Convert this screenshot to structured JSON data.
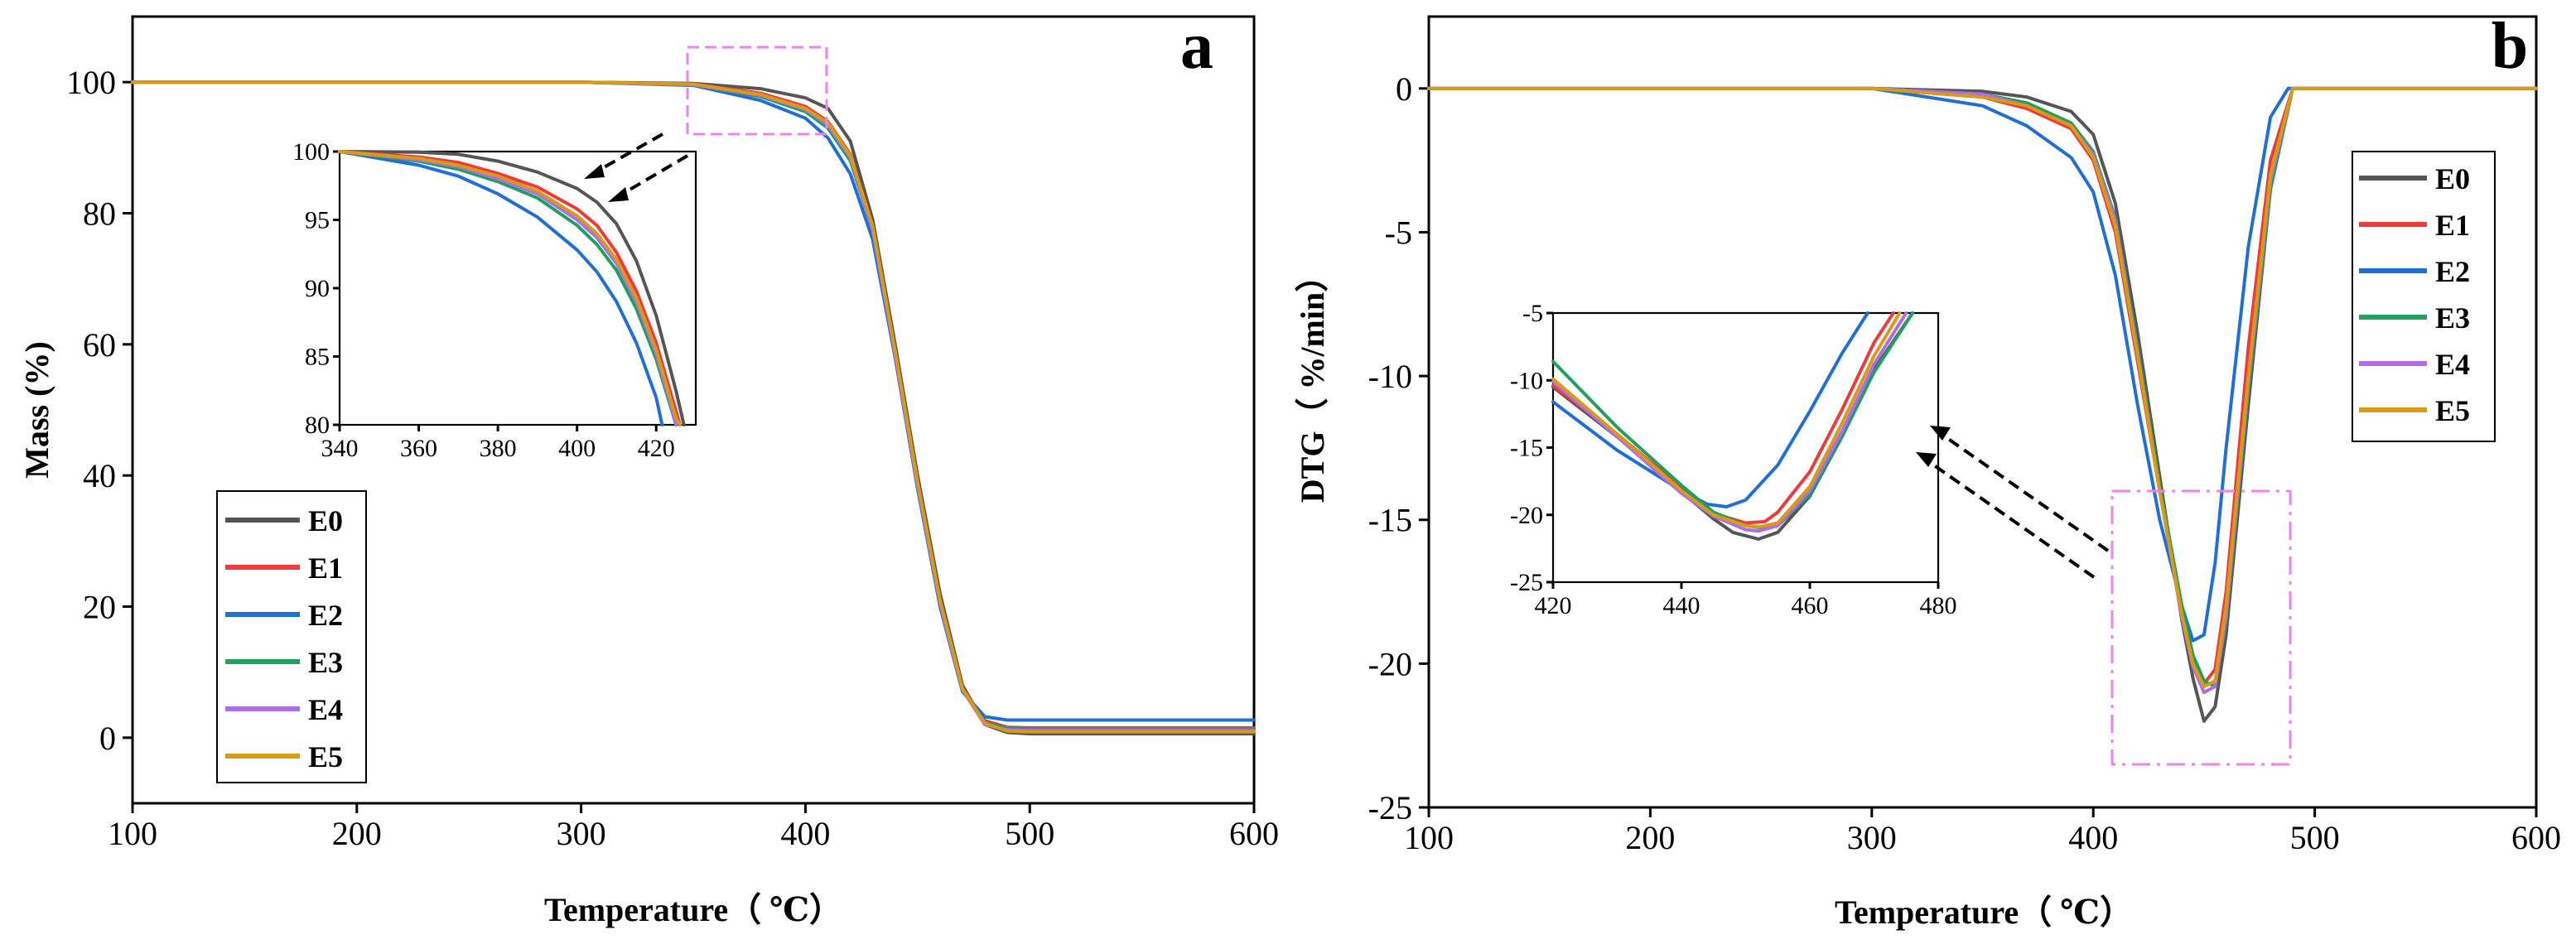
{
  "chart_data": [
    {
      "panel": "a",
      "type": "line",
      "xlabel": "Temperature（ ℃）",
      "ylabel": "Mass (%)",
      "xlim": [
        100,
        600
      ],
      "ylim": [
        -10,
        110
      ],
      "xticks": [
        100,
        200,
        300,
        400,
        500,
        600
      ],
      "yticks": [
        0,
        20,
        40,
        60,
        80,
        100
      ],
      "tick_labels_x": [
        "100",
        "200",
        "300",
        "400",
        "500",
        "600"
      ],
      "tick_labels_y": [
        "0",
        "20",
        "40",
        "60",
        "80",
        "100"
      ],
      "legend_position": "bottom-left",
      "series": [
        {
          "name": "E0",
          "color": "#555555",
          "x": [
            100,
            300,
            350,
            380,
            400,
            410,
            420,
            430,
            440,
            450,
            460,
            470,
            480,
            490,
            500,
            600
          ],
          "y": [
            100,
            100,
            99.8,
            99.0,
            97.6,
            96.0,
            91.0,
            79.0,
            60.0,
            40.0,
            22.0,
            8.0,
            2.0,
            0.8,
            0.6,
            0.6
          ]
        },
        {
          "name": "E1",
          "color": "#ee3a3a",
          "x": [
            100,
            300,
            350,
            380,
            400,
            410,
            420,
            430,
            440,
            450,
            460,
            470,
            480,
            490,
            500,
            600
          ],
          "y": [
            100,
            100,
            99.7,
            98.3,
            96.3,
            94.0,
            89.0,
            78.0,
            59.0,
            39.0,
            21.0,
            7.5,
            2.6,
            1.6,
            1.5,
            1.5
          ]
        },
        {
          "name": "E2",
          "color": "#1f6fd6",
          "x": [
            100,
            300,
            350,
            380,
            400,
            410,
            420,
            430,
            440,
            450,
            460,
            470,
            480,
            490,
            500,
            600
          ],
          "y": [
            100,
            100,
            99.5,
            97.2,
            94.5,
            91.5,
            86.0,
            76.0,
            58.0,
            38.0,
            20.0,
            7.0,
            3.2,
            2.7,
            2.7,
            2.7
          ]
        },
        {
          "name": "E3",
          "color": "#1fa060",
          "x": [
            100,
            300,
            350,
            380,
            400,
            410,
            420,
            430,
            440,
            450,
            460,
            470,
            480,
            490,
            500,
            600
          ],
          "y": [
            100,
            100,
            99.6,
            97.8,
            95.5,
            93.0,
            88.0,
            77.5,
            58.5,
            38.5,
            20.5,
            7.2,
            2.3,
            1.4,
            1.3,
            1.3
          ]
        },
        {
          "name": "E4",
          "color": "#b06cf0",
          "x": [
            100,
            300,
            350,
            380,
            400,
            410,
            420,
            430,
            440,
            450,
            460,
            470,
            480,
            490,
            500,
            600
          ],
          "y": [
            100,
            100,
            99.6,
            98.0,
            95.8,
            93.5,
            88.5,
            77.5,
            58.5,
            38.5,
            20.5,
            7.3,
            2.0,
            1.2,
            1.1,
            1.1
          ]
        },
        {
          "name": "E5",
          "color": "#d89b12",
          "x": [
            100,
            300,
            350,
            380,
            400,
            410,
            420,
            430,
            440,
            450,
            460,
            470,
            480,
            490,
            500,
            600
          ],
          "y": [
            100,
            100,
            99.7,
            98.1,
            96.0,
            93.8,
            88.8,
            78.0,
            59.0,
            39.0,
            21.0,
            7.5,
            2.2,
            1.0,
            0.9,
            0.9
          ]
        }
      ],
      "inset": {
        "xlim": [
          340,
          430
        ],
        "ylim": [
          80,
          100
        ],
        "xticks": [
          340,
          360,
          380,
          400,
          420
        ],
        "yticks": [
          80,
          85,
          90,
          95,
          100
        ],
        "tick_labels_x": [
          "340",
          "360",
          "380",
          "400",
          "420"
        ],
        "tick_labels_y": [
          "80",
          "85",
          "90",
          "95",
          "100"
        ],
        "series": [
          {
            "name": "E0",
            "x": [
              340,
              360,
              370,
              380,
              390,
              400,
              405,
              410,
              415,
              420,
              425,
              427
            ],
            "y": [
              100,
              99.95,
              99.8,
              99.3,
              98.5,
              97.3,
              96.3,
              94.7,
              92.0,
              88.0,
              82.5,
              80.0
            ]
          },
          {
            "name": "E1",
            "x": [
              340,
              360,
              370,
              380,
              390,
              400,
              405,
              410,
              415,
              420,
              425,
              426
            ],
            "y": [
              100,
              99.6,
              99.2,
              98.4,
              97.4,
              95.8,
              94.6,
              92.6,
              89.8,
              86.0,
              81.0,
              80.0
            ]
          },
          {
            "name": "E2",
            "x": [
              340,
              360,
              370,
              380,
              390,
              400,
              405,
              410,
              415,
              420,
              421.5
            ],
            "y": [
              100,
              99.0,
              98.2,
              96.9,
              95.2,
              92.8,
              91.2,
              89.0,
              86.0,
              82.0,
              80.0
            ]
          },
          {
            "name": "E3",
            "x": [
              340,
              360,
              370,
              380,
              390,
              400,
              405,
              410,
              415,
              420,
              424,
              425
            ],
            "y": [
              100,
              99.3,
              98.7,
              97.8,
              96.6,
              94.6,
              93.2,
              91.3,
              88.5,
              84.8,
              81.0,
              80.0
            ]
          },
          {
            "name": "E4",
            "x": [
              340,
              360,
              370,
              380,
              390,
              400,
              405,
              410,
              415,
              420,
              424,
              425
            ],
            "y": [
              100,
              99.4,
              98.9,
              98.0,
              96.9,
              95.0,
              93.7,
              91.8,
              89.0,
              85.2,
              81.2,
              80.0
            ]
          },
          {
            "name": "E5",
            "x": [
              340,
              360,
              370,
              380,
              390,
              400,
              405,
              410,
              415,
              420,
              425,
              426
            ],
            "y": [
              100,
              99.5,
              99.0,
              98.2,
              97.1,
              95.3,
              94.0,
              92.1,
              89.3,
              85.5,
              80.5,
              80.0
            ]
          }
        ]
      }
    },
    {
      "panel": "b",
      "type": "line",
      "xlabel": "Temperature（ ℃）",
      "ylabel": "DTG（ %/min）",
      "xlim": [
        100,
        600
      ],
      "ylim": [
        -25,
        2.5
      ],
      "xticks": [
        100,
        200,
        300,
        400,
        500,
        600
      ],
      "yticks": [
        -25,
        -20,
        -15,
        -10,
        -5,
        0
      ],
      "tick_labels_x": [
        "100",
        "200",
        "300",
        "400",
        "500",
        "600"
      ],
      "tick_labels_y": [
        "-25",
        "-20",
        "-15",
        "-10",
        "-5",
        "0"
      ],
      "legend_position": "right",
      "series": [
        {
          "name": "E0",
          "color": "#555555",
          "x": [
            100,
            300,
            350,
            370,
            390,
            400,
            410,
            420,
            430,
            440,
            445,
            450,
            455,
            460,
            470,
            480,
            490,
            600
          ],
          "y": [
            0,
            0,
            -0.1,
            -0.3,
            -0.8,
            -1.6,
            -4.0,
            -8.5,
            -13.5,
            -18.5,
            -20.5,
            -22.0,
            -21.5,
            -19.0,
            -11.0,
            -3.5,
            0,
            0
          ]
        },
        {
          "name": "E1",
          "color": "#ee3a3a",
          "x": [
            100,
            300,
            350,
            370,
            390,
            400,
            410,
            420,
            430,
            440,
            445,
            450,
            455,
            460,
            470,
            480,
            490,
            600
          ],
          "y": [
            0,
            0,
            -0.3,
            -0.7,
            -1.4,
            -2.5,
            -5.0,
            -9.5,
            -14.0,
            -18.0,
            -19.8,
            -20.7,
            -20.2,
            -17.5,
            -9.0,
            -2.5,
            0,
            0
          ]
        },
        {
          "name": "E2",
          "color": "#1f6fd6",
          "x": [
            100,
            300,
            350,
            370,
            390,
            400,
            410,
            420,
            430,
            440,
            445,
            450,
            455,
            460,
            470,
            480,
            488,
            600
          ],
          "y": [
            0,
            0,
            -0.6,
            -1.3,
            -2.4,
            -3.6,
            -6.5,
            -11.0,
            -15.0,
            -18.0,
            -19.2,
            -19.0,
            -16.5,
            -12.5,
            -5.5,
            -1.0,
            0,
            0
          ]
        },
        {
          "name": "E3",
          "color": "#1fa060",
          "x": [
            100,
            300,
            350,
            370,
            390,
            400,
            410,
            420,
            430,
            440,
            445,
            450,
            455,
            460,
            470,
            480,
            490,
            600
          ],
          "y": [
            0,
            0,
            -0.2,
            -0.5,
            -1.2,
            -2.2,
            -4.5,
            -9.0,
            -13.8,
            -18.0,
            -19.7,
            -20.6,
            -20.8,
            -18.5,
            -10.5,
            -3.5,
            0,
            0
          ]
        },
        {
          "name": "E4",
          "color": "#b06cf0",
          "x": [
            100,
            300,
            350,
            370,
            390,
            400,
            410,
            420,
            430,
            440,
            445,
            450,
            455,
            460,
            470,
            480,
            490,
            600
          ],
          "y": [
            0,
            0,
            -0.2,
            -0.6,
            -1.3,
            -2.3,
            -4.6,
            -9.2,
            -14.0,
            -18.4,
            -20.1,
            -21.0,
            -20.8,
            -18.3,
            -10.2,
            -3.2,
            0,
            0
          ]
        },
        {
          "name": "E5",
          "color": "#d89b12",
          "x": [
            100,
            300,
            350,
            370,
            390,
            400,
            410,
            420,
            430,
            440,
            445,
            450,
            455,
            460,
            470,
            480,
            490,
            600
          ],
          "y": [
            0,
            0,
            -0.3,
            -0.6,
            -1.3,
            -2.4,
            -4.8,
            -9.3,
            -14.0,
            -18.3,
            -20.0,
            -20.8,
            -20.6,
            -18.0,
            -10.0,
            -3.0,
            0,
            0
          ]
        }
      ],
      "inset": {
        "xlim": [
          420,
          480
        ],
        "ylim": [
          -25,
          -5
        ],
        "xticks": [
          420,
          440,
          460,
          480
        ],
        "yticks": [
          -25,
          -20,
          -15,
          -10,
          -5
        ],
        "tick_labels_x": [
          "420",
          "440",
          "460",
          "480"
        ],
        "tick_labels_y": [
          "-25",
          "-20",
          "-15",
          "-10",
          "-5"
        ],
        "series": [
          {
            "name": "E0",
            "x": [
              420,
              430,
              440,
              445,
              448,
              452,
              455,
              460,
              465,
              470,
              476
            ],
            "y": [
              -10.5,
              -14.2,
              -18.3,
              -20.3,
              -21.3,
              -21.8,
              -21.3,
              -18.6,
              -14.2,
              -9.2,
              -5.0
            ]
          },
          {
            "name": "E1",
            "x": [
              420,
              430,
              440,
              445,
              450,
              453,
              455,
              460,
              465,
              470,
              473
            ],
            "y": [
              -10.4,
              -14.0,
              -18.0,
              -19.9,
              -20.6,
              -20.5,
              -19.8,
              -16.8,
              -12.2,
              -7.2,
              -5.0
            ]
          },
          {
            "name": "E2",
            "x": [
              420,
              430,
              440,
              444,
              447,
              450,
              455,
              460,
              465,
              469
            ],
            "y": [
              -11.6,
              -15.2,
              -18.2,
              -19.2,
              -19.4,
              -18.9,
              -16.3,
              -12.3,
              -8.0,
              -5.0
            ]
          },
          {
            "name": "E3",
            "x": [
              420,
              430,
              440,
              445,
              450,
              453,
              455,
              460,
              465,
              470,
              476
            ],
            "y": [
              -8.6,
              -13.5,
              -17.8,
              -19.8,
              -20.8,
              -21.0,
              -20.8,
              -18.5,
              -14.2,
              -9.4,
              -5.0
            ]
          },
          {
            "name": "E4",
            "x": [
              420,
              430,
              440,
              445,
              450,
              452,
              455,
              460,
              465,
              470,
              475
            ],
            "y": [
              -10.1,
              -14.2,
              -18.4,
              -20.1,
              -21.1,
              -21.2,
              -20.8,
              -18.2,
              -13.8,
              -8.8,
              -5.0
            ]
          },
          {
            "name": "E5",
            "x": [
              420,
              430,
              440,
              445,
              450,
              452,
              455,
              460,
              465,
              470,
              474
            ],
            "y": [
              -9.9,
              -14.0,
              -18.2,
              -20.0,
              -20.8,
              -20.9,
              -20.6,
              -17.9,
              -13.2,
              -8.2,
              -5.0
            ]
          }
        ]
      }
    }
  ]
}
